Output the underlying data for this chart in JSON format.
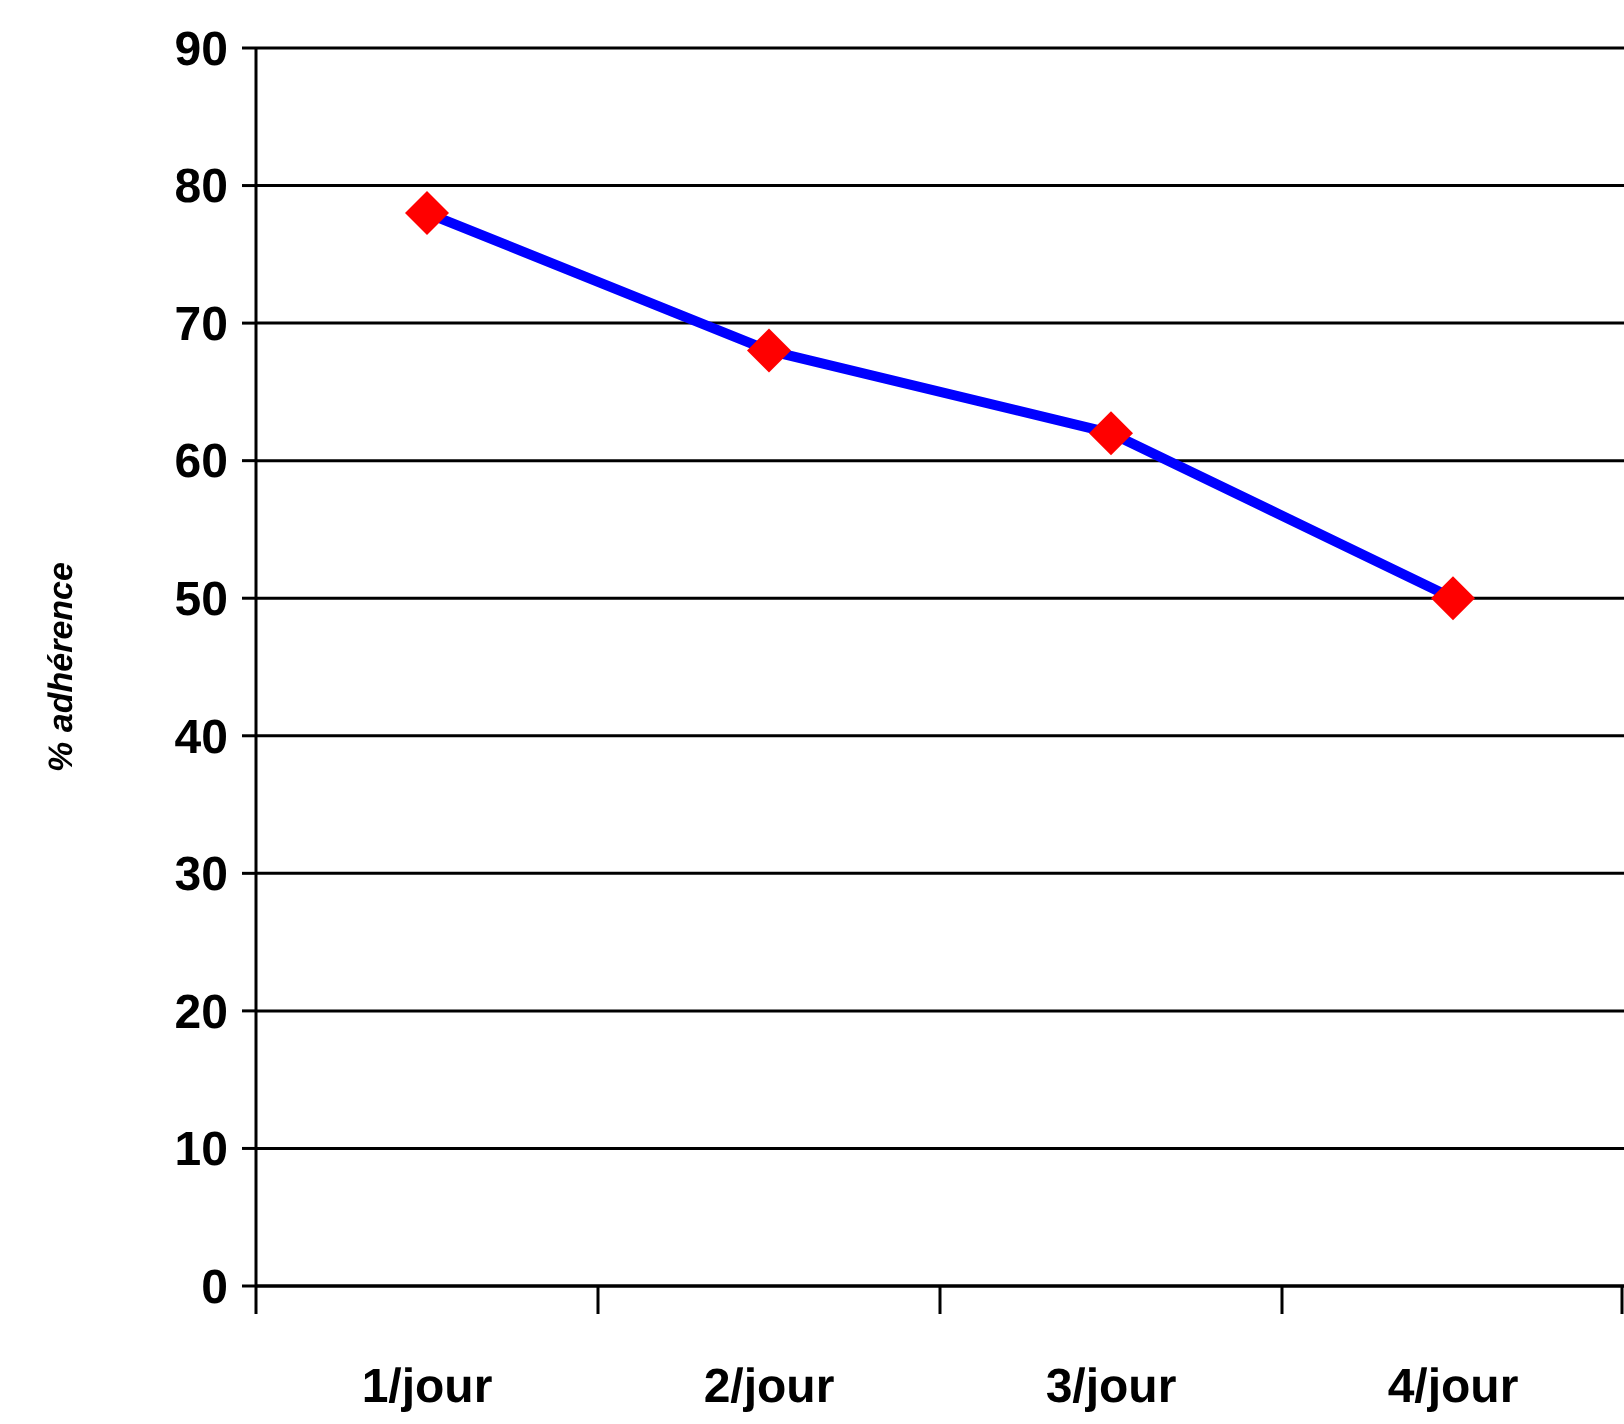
{
  "chart_data": {
    "type": "line",
    "ylabel": "% adhérence",
    "categories": [
      "1/jour",
      "2/jour",
      "3/jour",
      "4/jour"
    ],
    "series": [
      {
        "color": "#0000ff",
        "colors": [
          "#ff0000",
          "#ff0000",
          "#ff0000",
          "#ff0000"
        ],
        "values": [
          78,
          68,
          62,
          50
        ]
      }
    ],
    "marker": "diamond",
    "line_style": "solid",
    "ylim": [
      0,
      90
    ],
    "yticks": [
      0,
      10,
      20,
      30,
      40,
      50,
      60,
      70,
      80,
      90
    ],
    "grid": "y"
  }
}
